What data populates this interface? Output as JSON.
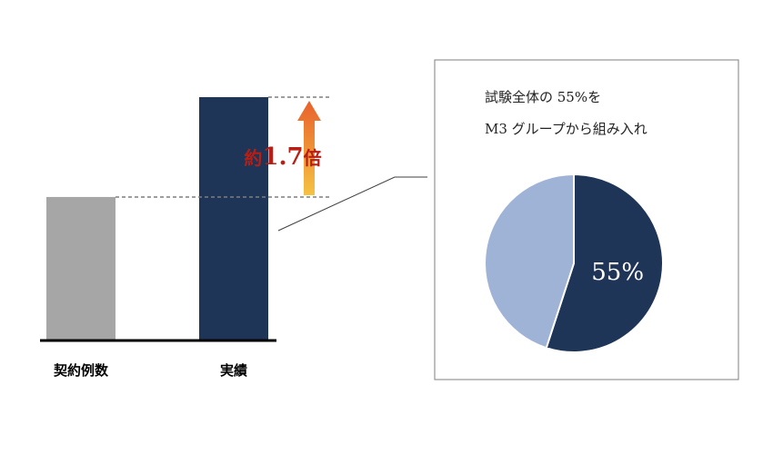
{
  "chart_data": [
    {
      "type": "bar",
      "categories": [
        "契約例数",
        "実績"
      ],
      "values": [
        1,
        1.7
      ],
      "colors": [
        "#a6a6a6",
        "#1f3558"
      ],
      "annotation": {
        "prefix": "約",
        "number": "1.7",
        "suffix": "倍",
        "arrow_colors": [
          "#f5c242",
          "#e8612c"
        ]
      }
    },
    {
      "type": "pie",
      "title_lines": [
        "試験全体の 55%を",
        "M3 グループから組み入れ"
      ],
      "slices": [
        {
          "label": "55%",
          "value": 55,
          "color": "#1f3558"
        },
        {
          "label": "",
          "value": 45,
          "color": "#9fb3d6"
        }
      ]
    }
  ]
}
